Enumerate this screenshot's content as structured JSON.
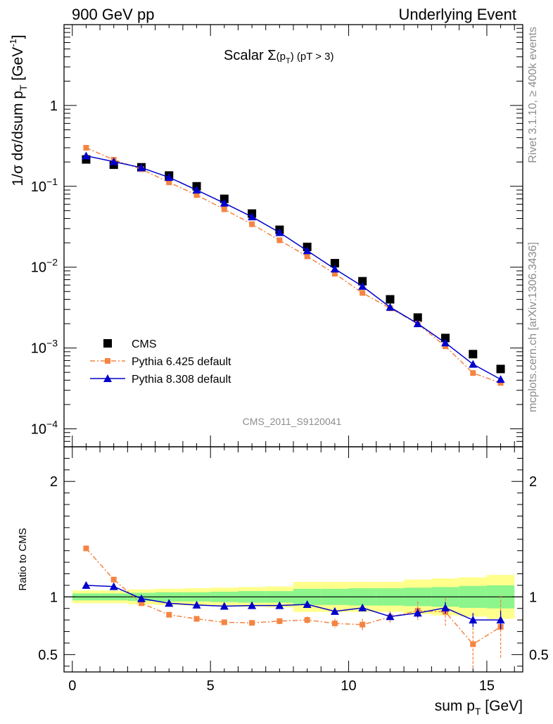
{
  "header": {
    "left": "900 GeV pp",
    "right": "Underlying Event"
  },
  "side_labels": {
    "rivet": "Rivet 3.1.10, ≥ 400k events",
    "mcplots": "mcplots.cern.ch [arXiv:1306.3436]"
  },
  "chart_data": [
    {
      "type": "scatter",
      "panel": "main",
      "title": "Scalar Σ(pT) (pT > 3)",
      "watermark": "CMS_2011_S9120041",
      "xlabel": "sum pT [GeV]",
      "ylabel": "1/σ dσ/dsum pT [GeV-1]",
      "yscale": "log",
      "xlim": [
        -0.3,
        16.3
      ],
      "ylim": [
        6e-05,
        10
      ],
      "y_ticks": [
        {
          "value": 1,
          "label": "1"
        },
        {
          "value": 0.1,
          "label": "10−1"
        },
        {
          "value": 0.01,
          "label": "10−2"
        },
        {
          "value": 0.001,
          "label": "10−3"
        },
        {
          "value": 0.0001,
          "label": "10−4"
        }
      ],
      "legend_position": "bottom-left",
      "x": [
        0.5,
        1.5,
        2.5,
        3.5,
        4.5,
        5.5,
        6.5,
        7.5,
        8.5,
        9.5,
        10.5,
        11.5,
        12.5,
        13.5,
        14.5,
        15.5
      ],
      "series": [
        {
          "name": "CMS",
          "color": "#000000",
          "marker": "square",
          "values": [
            0.215,
            0.185,
            0.172,
            0.136,
            0.1,
            0.07,
            0.046,
            0.029,
            0.0178,
            0.0112,
            0.0067,
            0.004,
            0.00238,
            0.00133,
            0.00084,
            0.00055
          ]
        },
        {
          "name": "Pythia 6.425 default",
          "color": "#f58442",
          "marker": "square-small",
          "values": [
            0.3,
            0.213,
            0.163,
            0.112,
            0.078,
            0.052,
            0.034,
            0.0215,
            0.0136,
            0.0083,
            0.0048,
            0.0031,
            0.002,
            0.00105,
            0.00049,
            0.00037
          ]
        },
        {
          "name": "Pythia 8.308 default",
          "color": "#0000cc",
          "marker": "triangle",
          "values": [
            0.238,
            0.202,
            0.17,
            0.129,
            0.09,
            0.062,
            0.042,
            0.0268,
            0.016,
            0.0095,
            0.0058,
            0.0032,
            0.002,
            0.00116,
            0.00063,
            0.00041
          ]
        }
      ]
    },
    {
      "type": "line",
      "panel": "ratio",
      "ylabel": "Ratio to CMS",
      "xlabel": "sum pT [GeV]",
      "xlim": [
        -0.3,
        16.3
      ],
      "ylim": [
        0.35,
        2.3
      ],
      "x_ticks": [
        0,
        5,
        10,
        15
      ],
      "y_ticks": [
        0.5,
        1,
        2
      ],
      "band_edges": [
        0,
        1,
        2,
        3,
        4,
        5,
        6,
        7,
        8,
        9,
        10,
        11,
        12,
        13,
        14,
        15,
        16
      ],
      "band_yellow": [
        0.055,
        0.055,
        0.065,
        0.07,
        0.075,
        0.08,
        0.085,
        0.09,
        0.13,
        0.13,
        0.13,
        0.13,
        0.15,
        0.16,
        0.17,
        0.19
      ],
      "band_green": [
        0.03,
        0.03,
        0.035,
        0.04,
        0.04,
        0.045,
        0.05,
        0.05,
        0.07,
        0.07,
        0.075,
        0.075,
        0.08,
        0.085,
        0.095,
        0.1
      ],
      "series": [
        {
          "name": "Pythia 6.425 default",
          "color": "#f58442",
          "values": [
            1.42,
            1.15,
            0.945,
            0.845,
            0.81,
            0.78,
            0.775,
            0.79,
            0.8,
            0.77,
            0.76,
            0.825,
            0.88,
            0.87,
            0.59,
            0.74
          ],
          "errors": [
            0.01,
            0.01,
            0.01,
            0.01,
            0.01,
            0.015,
            0.02,
            0.025,
            0.03,
            0.04,
            0.05,
            0.05,
            0.08,
            0.12,
            0.22,
            0.27
          ]
        },
        {
          "name": "Pythia 8.308 default",
          "color": "#0000cc",
          "values": [
            1.1,
            1.09,
            0.985,
            0.945,
            0.93,
            0.92,
            0.925,
            0.925,
            0.935,
            0.875,
            0.905,
            0.83,
            0.86,
            0.905,
            0.8,
            0.8
          ],
          "errors": [
            0.005,
            0.005,
            0.005,
            0.006,
            0.008,
            0.01,
            0.012,
            0.015,
            0.02,
            0.02,
            0.025,
            0.03,
            0.04,
            0.05,
            0.06,
            0.08
          ]
        }
      ]
    }
  ]
}
